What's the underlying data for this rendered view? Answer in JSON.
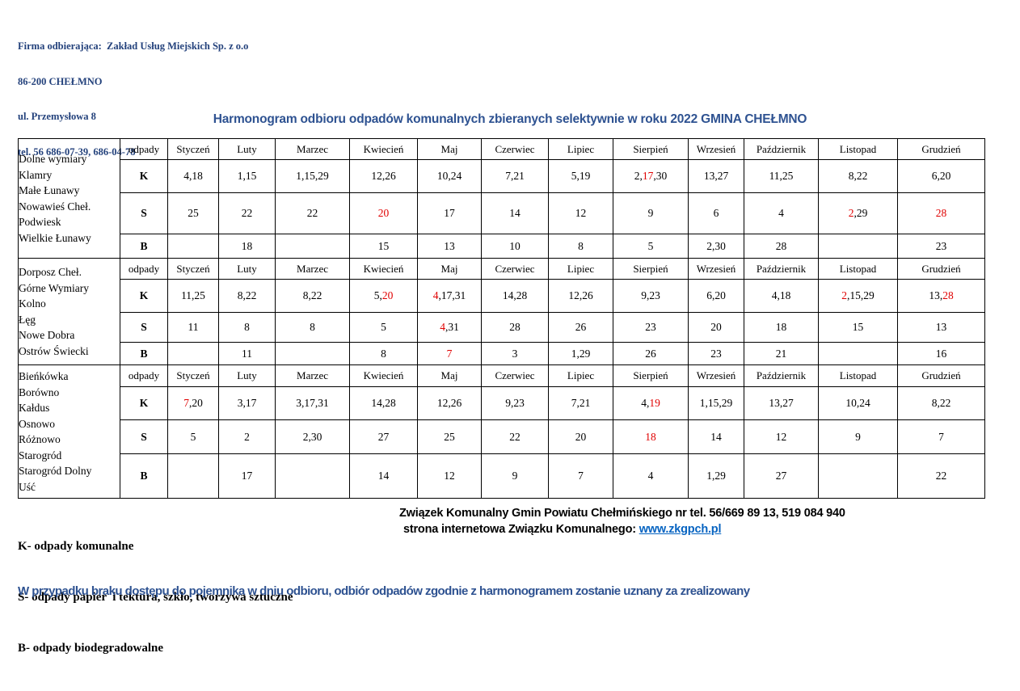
{
  "company": {
    "line1": "Firma odbierająca:  Zakład Usług Miejskich Sp. z o.o",
    "line2": "86-200 CHEŁMNO",
    "line3": "ul. Przemysłowa 8",
    "line4": "tel. 56 686-07-39, 686-04-78"
  },
  "title": "Harmonogram odbioru odpadów komunalnych zbieranych selektywnie w roku 2022 GMINA CHEŁMNO",
  "table": {
    "header": [
      "odpady",
      "Styczeń",
      "Luty",
      "Marzec",
      "Kwiecień",
      "Maj",
      "Czerwiec",
      "Lipiec",
      "Sierpień",
      "Wrzesień",
      "Październik",
      "Listopad",
      "Grudzień"
    ],
    "groups": [
      {
        "villages": [
          "Dolne wymiary",
          "Klamry",
          "Małe Łunawy",
          "Nowawieś Cheł.",
          "Podwiesk",
          "Wielkie Łunawy"
        ],
        "rows": [
          {
            "type": "K",
            "cells": [
              "4,18",
              "1,15",
              "1,15,29",
              "12,26",
              "10,24",
              "7,21",
              "5,19",
              [
                {
                  "t": "2,"
                },
                {
                  "t": "17",
                  "red": true
                },
                {
                  "t": ",30"
                }
              ],
              "13,27",
              "11,25",
              "8,22",
              "6,20"
            ]
          },
          {
            "type": "S",
            "cells": [
              "25",
              "22",
              "22",
              [
                {
                  "t": "20",
                  "red": true
                }
              ],
              "17",
              "14",
              "12",
              "9",
              "6",
              "4",
              [
                {
                  "t": "2",
                  "red": true
                },
                {
                  "t": ",29"
                }
              ],
              [
                {
                  "t": "28",
                  "red": true
                }
              ]
            ]
          },
          {
            "type": "B",
            "cells": [
              "",
              "18",
              "",
              "15",
              "13",
              "10",
              "8",
              "5",
              "2,30",
              "28",
              "",
              "23"
            ]
          }
        ]
      },
      {
        "villages": [
          "Dorposz Cheł.",
          "Górne Wymiary",
          "Kolno",
          "Łęg",
          "Nowe Dobra",
          "Ostrów Świecki"
        ],
        "rows": [
          {
            "type": "K",
            "cells": [
              "11,25",
              "8,22",
              "8,22",
              [
                {
                  "t": "5,"
                },
                {
                  "t": "20",
                  "red": true
                }
              ],
              [
                {
                  "t": "4",
                  "red": true
                },
                {
                  "t": ",17,31"
                }
              ],
              "14,28",
              "12,26",
              "9,23",
              "6,20",
              "4,18",
              [
                {
                  "t": "2",
                  "red": true
                },
                {
                  "t": ",15,29"
                }
              ],
              [
                {
                  "t": "13,"
                },
                {
                  "t": "28",
                  "red": true
                }
              ]
            ]
          },
          {
            "type": "S",
            "cells": [
              "11",
              "8",
              "8",
              "5",
              [
                {
                  "t": "4",
                  "red": true
                },
                {
                  "t": ",31"
                }
              ],
              "28",
              "26",
              "23",
              "20",
              "18",
              "15",
              "13"
            ]
          },
          {
            "type": "B",
            "cells": [
              "",
              "11",
              "",
              "8",
              [
                {
                  "t": "7",
                  "red": true
                }
              ],
              "3",
              "1,29",
              "26",
              "23",
              "21",
              "",
              "16"
            ]
          }
        ]
      },
      {
        "villages": [
          "Bieńkówka",
          "Borówno",
          "Kałdus",
          "Osnowo",
          "Różnowo",
          "Starogród",
          "Starogród Dolny",
          "Uść"
        ],
        "rows": [
          {
            "type": "K",
            "cells": [
              [
                {
                  "t": "7",
                  "red": true
                },
                {
                  "t": ",20"
                }
              ],
              "3,17",
              "3,17,31",
              "14,28",
              "12,26",
              "9,23",
              "7,21",
              [
                {
                  "t": "4,"
                },
                {
                  "t": "19",
                  "red": true
                }
              ],
              "1,15,29",
              "13,27",
              "10,24",
              "8,22"
            ]
          },
          {
            "type": "S",
            "cells": [
              "5",
              "2",
              "2,30",
              "27",
              "25",
              "22",
              "20",
              [
                {
                  "t": "18",
                  "red": true
                }
              ],
              "14",
              "12",
              "9",
              "7"
            ]
          },
          {
            "type": "B",
            "cells": [
              "",
              "17",
              "",
              "14",
              "12",
              "9",
              "7",
              "4",
              "1,29",
              "27",
              "",
              "22"
            ]
          }
        ]
      }
    ]
  },
  "legend": {
    "item_k": "K- odpady komunalne",
    "item_s": "S- odpady papier  i tektura, szkło, tworzywa sztuczne",
    "item_b": "B- odpady biodegradowalne"
  },
  "footer": {
    "association_line": "Związek Komunalny Gmin Powiatu Chełmińskiego nr tel. 56/669 89 13, 519 084 940",
    "website_prefix": "strona internetowa Związku Komunalnego: ",
    "website_link": "www.zkgpch.pl"
  },
  "note": "W przypadku braku dostępu do pojemnika w dniu odbioru, odbiór odpadów zgodnie z harmonogramem zostanie uznany za zrealizowany",
  "colors": {
    "company_text": "#24427c",
    "title_text": "#2e5291",
    "highlight_red": "#e00000",
    "link_blue": "#0563c1",
    "table_text": "#000000"
  }
}
